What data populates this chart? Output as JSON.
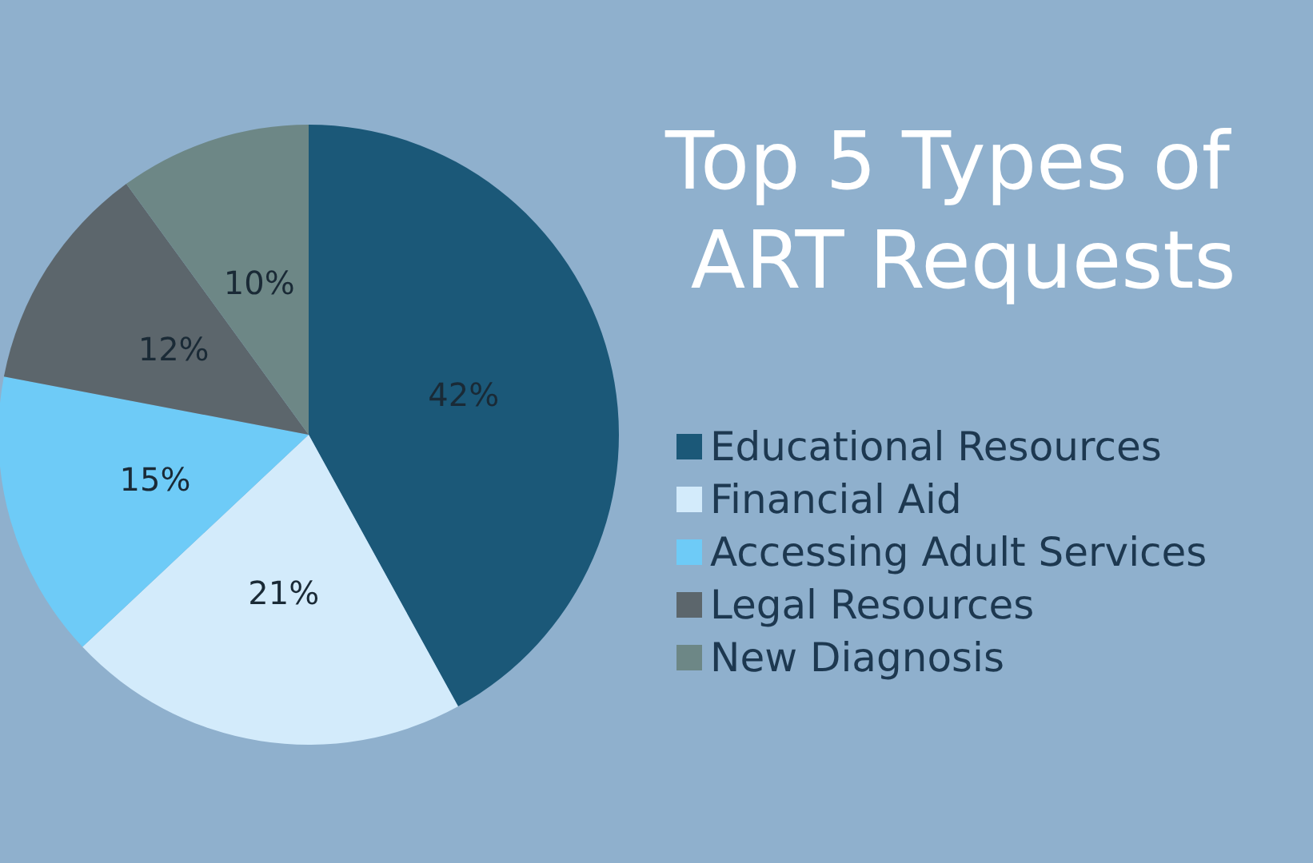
{
  "chart_data": {
    "type": "pie",
    "title": "Top 5 Types of ART Requests",
    "categories": [
      "Educational Resources",
      "Financial Aid",
      "Accessing Adult Services",
      "Legal Resources",
      "New Diagnosis"
    ],
    "values": [
      42,
      21,
      15,
      12,
      10
    ],
    "value_labels": [
      "42%",
      "21%",
      "15%",
      "12%",
      "10%"
    ],
    "colors": [
      "#1b5878",
      "#d3ebfb",
      "#6ecbf7",
      "#5c666c",
      "#6d8786"
    ],
    "legend": "right"
  }
}
